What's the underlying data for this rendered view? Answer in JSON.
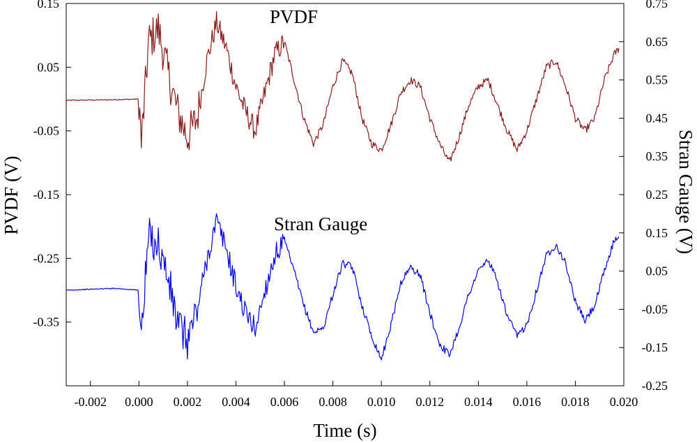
{
  "chart_data": {
    "type": "line",
    "xlabel": "Time (s)",
    "ylabel_left": "PVDF (V)",
    "ylabel_right": "Stran Gauge (V)",
    "xlim": [
      -0.003,
      0.02
    ],
    "ylim_left": [
      -0.45,
      0.15
    ],
    "ylim_right": [
      -0.25,
      0.75
    ],
    "x_ticks": [
      "-0.002",
      "0.000",
      "0.002",
      "0.004",
      "0.006",
      "0.008",
      "0.010",
      "0.012",
      "0.014",
      "0.016",
      "0.018",
      "0.020"
    ],
    "x_tick_values": [
      -0.002,
      0.0,
      0.002,
      0.004,
      0.006,
      0.008,
      0.01,
      0.012,
      0.014,
      0.016,
      0.018,
      0.02
    ],
    "y_left_ticks": [
      "0.15",
      "0.05",
      "-0.05",
      "-0.15",
      "-0.25",
      "-0.35"
    ],
    "y_left_tick_values": [
      0.15,
      0.05,
      -0.05,
      -0.15,
      -0.25,
      -0.35
    ],
    "y_right_ticks": [
      "0.75",
      "0.65",
      "0.55",
      "0.45",
      "0.35",
      "0.25",
      "0.15",
      "0.05",
      "-0.05",
      "-0.15",
      "-0.25"
    ],
    "y_right_tick_values": [
      0.75,
      0.65,
      0.55,
      0.45,
      0.35,
      0.25,
      0.15,
      0.05,
      -0.05,
      -0.15,
      -0.25
    ],
    "annotations": [
      "PVDF",
      "Stran Gauge"
    ],
    "series": [
      {
        "name": "PVDF",
        "axis": "left",
        "color": "#8b1a1a",
        "x": [
          -0.003,
          -0.001,
          0.0,
          0.0001,
          0.0004,
          0.0008,
          0.0012,
          0.0016,
          0.002,
          0.0024,
          0.0028,
          0.0032,
          0.0036,
          0.004,
          0.0044,
          0.0048,
          0.0052,
          0.0056,
          0.006,
          0.0064,
          0.0068,
          0.0072,
          0.0076,
          0.008,
          0.0084,
          0.0088,
          0.0092,
          0.0096,
          0.01,
          0.0104,
          0.0108,
          0.0112,
          0.0116,
          0.012,
          0.0124,
          0.0128,
          0.0132,
          0.0136,
          0.014,
          0.0144,
          0.0148,
          0.0152,
          0.0156,
          0.016,
          0.0164,
          0.0168,
          0.0172,
          0.0176,
          0.018,
          0.0184,
          0.0188,
          0.0192,
          0.0196,
          0.0198
        ],
        "y": [
          -0.002,
          -0.001,
          0.0,
          -0.07,
          0.09,
          0.11,
          0.04,
          -0.02,
          -0.06,
          -0.03,
          0.06,
          0.12,
          0.08,
          0.02,
          -0.02,
          -0.05,
          0.01,
          0.07,
          0.09,
          0.03,
          -0.03,
          -0.07,
          -0.04,
          0.02,
          0.06,
          0.04,
          -0.03,
          -0.07,
          -0.08,
          -0.04,
          0.01,
          0.03,
          0.02,
          -0.03,
          -0.07,
          -0.1,
          -0.06,
          -0.01,
          0.02,
          0.03,
          -0.01,
          -0.05,
          -0.08,
          -0.05,
          0.0,
          0.05,
          0.06,
          0.02,
          -0.03,
          -0.05,
          -0.03,
          0.03,
          0.07,
          0.08
        ]
      },
      {
        "name": "Stran Gauge",
        "axis": "right",
        "color": "#0000ee",
        "x": [
          -0.003,
          -0.001,
          0.0,
          0.0001,
          0.0004,
          0.0008,
          0.0012,
          0.0016,
          0.002,
          0.0024,
          0.0028,
          0.0032,
          0.0036,
          0.004,
          0.0044,
          0.0048,
          0.0052,
          0.0056,
          0.006,
          0.0064,
          0.0068,
          0.0072,
          0.0076,
          0.008,
          0.0084,
          0.0088,
          0.0092,
          0.0096,
          0.01,
          0.0104,
          0.0108,
          0.0112,
          0.0116,
          0.012,
          0.0124,
          0.0128,
          0.0132,
          0.0136,
          0.014,
          0.0144,
          0.0148,
          0.0152,
          0.0156,
          0.016,
          0.0164,
          0.0168,
          0.0172,
          0.0176,
          0.018,
          0.0184,
          0.0188,
          0.0192,
          0.0196,
          0.0198
        ],
        "y": [
          0.0,
          0.005,
          0.0,
          -0.12,
          0.14,
          0.12,
          0.03,
          -0.09,
          -0.13,
          -0.05,
          0.08,
          0.18,
          0.11,
          0.01,
          -0.06,
          -0.1,
          0.0,
          0.09,
          0.13,
          0.05,
          -0.04,
          -0.11,
          -0.1,
          -0.01,
          0.07,
          0.06,
          -0.04,
          -0.12,
          -0.18,
          -0.09,
          0.02,
          0.06,
          0.04,
          -0.06,
          -0.14,
          -0.17,
          -0.1,
          -0.01,
          0.05,
          0.08,
          0.02,
          -0.07,
          -0.12,
          -0.09,
          0.0,
          0.09,
          0.12,
          0.07,
          -0.03,
          -0.08,
          -0.04,
          0.05,
          0.13,
          0.14
        ]
      }
    ]
  }
}
